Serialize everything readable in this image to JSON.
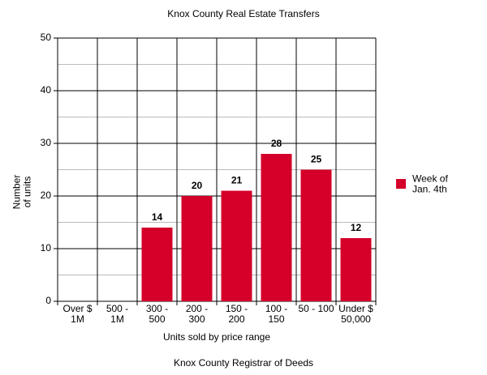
{
  "chart_data": {
    "type": "bar",
    "title": "Knox County Real Estate Transfers",
    "x_label": "Units sold by price range",
    "y_label": "Number\nof units",
    "footer": "Knox County Registrar of Deeds",
    "categories": [
      "Over $\n1M",
      "500 -\n1M",
      "300 -\n500",
      "200 -\n300",
      "150 -\n200",
      "100 -\n150",
      "50 - 100",
      "Under $\n50,000"
    ],
    "series": [
      {
        "name": "Week of\nJan. 4th",
        "color": "#d40029",
        "values": [
          null,
          null,
          14,
          20,
          21,
          28,
          25,
          12
        ]
      }
    ],
    "ylim": [
      0,
      50
    ],
    "yticks": [
      0,
      10,
      20,
      30,
      40,
      50
    ],
    "yminor": [
      5,
      15,
      25,
      35,
      45
    ],
    "grid": true,
    "legend": "right"
  }
}
